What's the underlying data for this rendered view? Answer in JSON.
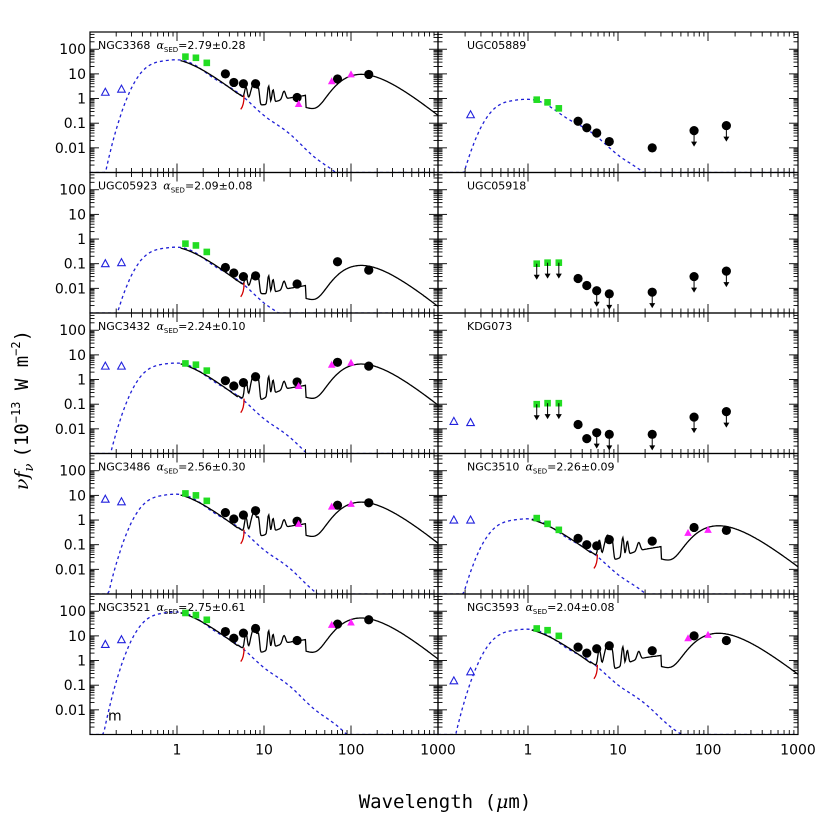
{
  "figure": {
    "y_label": "νf",
    "y_label_sub": "ν",
    "y_label_unit": "(10",
    "y_label_exp": "−13",
    "y_label_unit2": " W m",
    "y_label_exp2": "−2",
    "y_label_close": ")",
    "x_label": "Wavelength (",
    "x_label_mu": "μ",
    "x_label_close": "m)",
    "corner_label": "m",
    "colors": {
      "ir": "#000000",
      "nir": "#22dd22",
      "far": "#ff22ff",
      "uv": "#2222dd",
      "stellar": "#1f1fd6",
      "pah": "#d40000"
    }
  },
  "chart_data": {
    "type": "scatter",
    "x_scale": "log",
    "y_scale": "log",
    "xlim": [
      0.1,
      1000
    ],
    "ylim": [
      0.001,
      500
    ],
    "x_ticks": [
      1,
      10,
      100,
      1000
    ],
    "x_tick_labels": [
      "1",
      "10",
      "100",
      "1000"
    ],
    "y_ticks": [
      0.01,
      0.1,
      1,
      10,
      100
    ],
    "y_tick_labels": [
      "0.01",
      "0.1",
      "1",
      "10",
      "100"
    ],
    "panels": [
      {
        "name": "NGC3368",
        "alpha_sym": "α",
        "alpha_sub": "SED",
        "alpha_val": "=2.79±0.28",
        "has_model": true,
        "stellar_norm": 40,
        "dust_norm": 9,
        "pah_scale": 3.5,
        "ir": [
          [
            3.6,
            10
          ],
          [
            4.5,
            4.5
          ],
          [
            5.8,
            4
          ],
          [
            8,
            4
          ],
          [
            24,
            1.1
          ],
          [
            70,
            6.2
          ],
          [
            160,
            9.5
          ]
        ],
        "nir": [
          [
            1.25,
            50
          ],
          [
            1.65,
            45
          ],
          [
            2.2,
            28
          ]
        ],
        "far": [
          [
            25,
            0.6
          ],
          [
            60,
            5
          ],
          [
            100,
            9.5
          ]
        ],
        "uv": [
          [
            0.15,
            1.8
          ],
          [
            0.23,
            2.4
          ]
        ],
        "upper": []
      },
      {
        "name": "UGC05889",
        "alpha_sym": "",
        "alpha_sub": "",
        "alpha_val": "",
        "has_model": false,
        "stellar_norm": 1,
        "dust_norm": 0,
        "pah_scale": 0,
        "ir": [
          [
            3.6,
            0.12
          ],
          [
            4.5,
            0.065
          ],
          [
            5.8,
            0.04
          ],
          [
            8,
            0.018
          ],
          [
            24,
            0.01
          ]
        ],
        "nir": [
          [
            1.25,
            0.9
          ],
          [
            1.65,
            0.7
          ],
          [
            2.2,
            0.4
          ]
        ],
        "far": [],
        "uv": [
          [
            0.23,
            0.22
          ]
        ],
        "upper": [
          [
            70,
            0.05
          ],
          [
            160,
            0.08
          ]
        ]
      },
      {
        "name": "UGC05923",
        "alpha_sym": "α",
        "alpha_sub": "SED",
        "alpha_val": "=2.09±0.08",
        "has_model": true,
        "stellar_norm": 0.5,
        "dust_norm": 0.08,
        "pah_scale": 0.035,
        "ir": [
          [
            3.6,
            0.07
          ],
          [
            4.5,
            0.042
          ],
          [
            5.8,
            0.03
          ],
          [
            8,
            0.032
          ],
          [
            24,
            0.015
          ],
          [
            70,
            0.12
          ],
          [
            160,
            0.055
          ]
        ],
        "nir": [
          [
            1.25,
            0.65
          ],
          [
            1.65,
            0.55
          ],
          [
            2.2,
            0.3
          ]
        ],
        "far": [],
        "uv": [
          [
            0.15,
            0.1
          ],
          [
            0.23,
            0.11
          ]
        ],
        "upper": []
      },
      {
        "name": "UGC05918",
        "alpha_sym": "",
        "alpha_sub": "",
        "alpha_val": "",
        "has_model": false,
        "stellar_norm": 0,
        "dust_norm": 0,
        "pah_scale": 0,
        "ir": [
          [
            3.6,
            0.025
          ],
          [
            4.5,
            0.013
          ]
        ],
        "nir": [],
        "far": [],
        "uv": [],
        "upper": [
          [
            1.25,
            0.1
          ],
          [
            1.65,
            0.11
          ],
          [
            2.2,
            0.11
          ],
          [
            5.8,
            0.008
          ],
          [
            8,
            0.006
          ],
          [
            24,
            0.007
          ],
          [
            70,
            0.03
          ],
          [
            160,
            0.05
          ]
        ]
      },
      {
        "name": "NGC3432",
        "alpha_sym": "α",
        "alpha_sub": "SED",
        "alpha_val": "=2.24±0.10",
        "has_model": true,
        "stellar_norm": 5,
        "dust_norm": 4,
        "pah_scale": 1.5,
        "ir": [
          [
            3.6,
            0.9
          ],
          [
            4.5,
            0.55
          ],
          [
            5.8,
            0.75
          ],
          [
            8,
            1.3
          ],
          [
            24,
            0.8
          ],
          [
            70,
            5
          ],
          [
            160,
            3.5
          ]
        ],
        "nir": [
          [
            1.25,
            4.5
          ],
          [
            1.65,
            4
          ],
          [
            2.2,
            2.3
          ]
        ],
        "far": [
          [
            25,
            0.55
          ],
          [
            60,
            4
          ],
          [
            100,
            4.8
          ]
        ],
        "uv": [
          [
            0.15,
            3.5
          ],
          [
            0.23,
            3.5
          ]
        ],
        "upper": []
      },
      {
        "name": "KDG073",
        "alpha_sym": "",
        "alpha_sub": "",
        "alpha_val": "",
        "has_model": false,
        "stellar_norm": 0,
        "dust_norm": 0,
        "pah_scale": 0,
        "ir": [
          [
            3.6,
            0.015
          ],
          [
            4.5,
            0.004
          ]
        ],
        "nir": [],
        "far": [],
        "uv": [
          [
            0.15,
            0.02
          ],
          [
            0.23,
            0.018
          ]
        ],
        "upper": [
          [
            1.25,
            0.1
          ],
          [
            1.65,
            0.11
          ],
          [
            2.2,
            0.11
          ],
          [
            5.8,
            0.007
          ],
          [
            8,
            0.006
          ],
          [
            24,
            0.006
          ],
          [
            70,
            0.03
          ],
          [
            160,
            0.05
          ]
        ]
      },
      {
        "name": "NGC3486",
        "alpha_sym": "α",
        "alpha_sub": "SED",
        "alpha_val": "=2.56±0.30",
        "has_model": true,
        "stellar_norm": 12,
        "dust_norm": 5,
        "pah_scale": 1.8,
        "ir": [
          [
            3.6,
            2
          ],
          [
            4.5,
            1.1
          ],
          [
            5.8,
            1.6
          ],
          [
            8,
            2.4
          ],
          [
            24,
            0.9
          ],
          [
            70,
            4
          ],
          [
            160,
            5
          ]
        ],
        "nir": [
          [
            1.25,
            12
          ],
          [
            1.65,
            10
          ],
          [
            2.2,
            6
          ]
        ],
        "far": [
          [
            25,
            0.7
          ],
          [
            60,
            3.5
          ],
          [
            100,
            4.5
          ]
        ],
        "uv": [
          [
            0.15,
            7
          ],
          [
            0.23,
            5.5
          ]
        ],
        "upper": []
      },
      {
        "name": "NGC3510",
        "alpha_sym": "α",
        "alpha_sub": "SED",
        "alpha_val": "=2.26±0.09",
        "has_model": true,
        "stellar_norm": 1.2,
        "dust_norm": 0.55,
        "pah_scale": 0.22,
        "ir": [
          [
            3.6,
            0.18
          ],
          [
            4.5,
            0.1
          ],
          [
            5.8,
            0.09
          ],
          [
            8,
            0.16
          ],
          [
            24,
            0.14
          ],
          [
            70,
            0.5
          ],
          [
            160,
            0.38
          ]
        ],
        "nir": [
          [
            1.25,
            1.2
          ],
          [
            1.65,
            0.7
          ],
          [
            2.2,
            0.4
          ]
        ],
        "far": [
          [
            60,
            0.3
          ],
          [
            100,
            0.4
          ]
        ],
        "uv": [
          [
            0.15,
            1.0
          ],
          [
            0.23,
            1.0
          ]
        ],
        "upper": []
      },
      {
        "name": "NGC3521",
        "alpha_sym": "α",
        "alpha_sub": "SED",
        "alpha_val": "=2.75±0.61",
        "has_model": true,
        "stellar_norm": 100,
        "dust_norm": 50,
        "pah_scale": 18,
        "ir": [
          [
            3.6,
            15
          ],
          [
            4.5,
            8
          ],
          [
            5.8,
            13
          ],
          [
            8,
            20
          ],
          [
            24,
            6.5
          ],
          [
            70,
            30
          ],
          [
            160,
            45
          ]
        ],
        "nir": [
          [
            1.25,
            85
          ],
          [
            1.65,
            70
          ],
          [
            2.2,
            45
          ]
        ],
        "far": [
          [
            60,
            28
          ],
          [
            100,
            35
          ]
        ],
        "uv": [
          [
            0.15,
            4.5
          ],
          [
            0.23,
            7
          ]
        ],
        "upper": []
      },
      {
        "name": "NGC3593",
        "alpha_sym": "α",
        "alpha_sub": "SED",
        "alpha_val": "=2.04±0.08",
        "has_model": true,
        "stellar_norm": 20,
        "dust_norm": 12,
        "pah_scale": 4,
        "ir": [
          [
            3.6,
            3.5
          ],
          [
            4.5,
            2
          ],
          [
            5.8,
            3
          ],
          [
            8,
            4
          ],
          [
            24,
            2.5
          ],
          [
            70,
            10
          ],
          [
            160,
            6.5
          ]
        ],
        "nir": [
          [
            1.25,
            20
          ],
          [
            1.65,
            17
          ],
          [
            2.2,
            10
          ]
        ],
        "far": [
          [
            60,
            8
          ],
          [
            100,
            11
          ]
        ],
        "uv": [
          [
            0.15,
            0.15
          ],
          [
            0.23,
            0.35
          ]
        ],
        "upper": []
      }
    ]
  }
}
